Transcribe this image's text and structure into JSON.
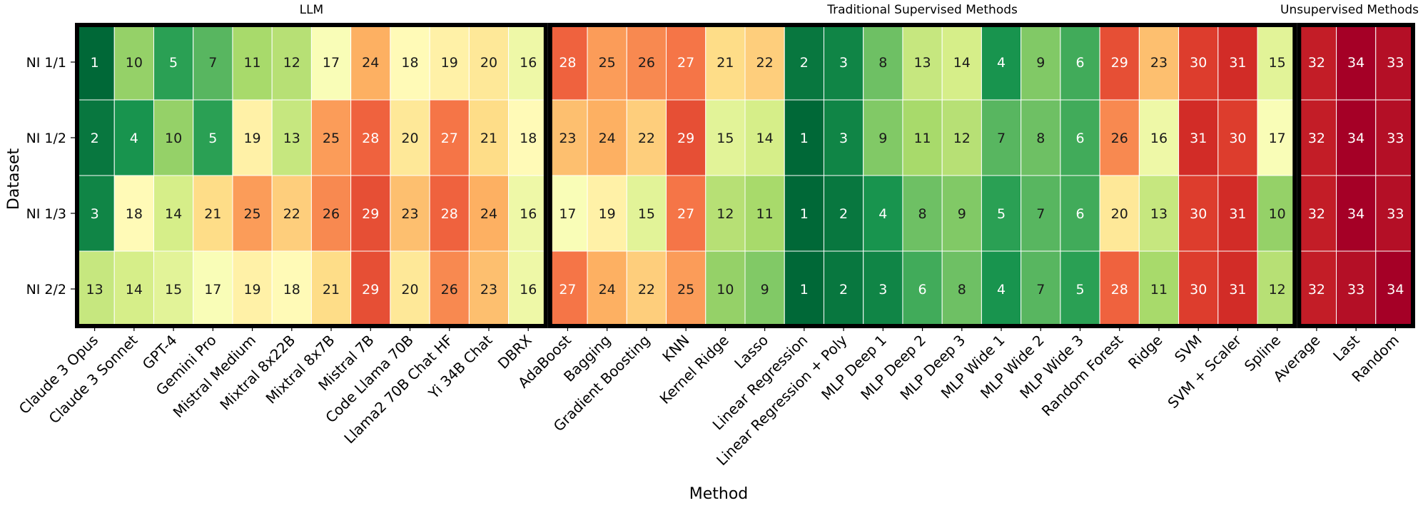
{
  "chart_data": {
    "type": "heatmap",
    "xlabel": "Method",
    "ylabel": "Dataset",
    "rows": [
      "NI 1/1",
      "NI 1/2",
      "NI 1/3",
      "NI 2/2"
    ],
    "columns": [
      "Claude 3 Opus",
      "Claude 3 Sonnet",
      "GPT-4",
      "Gemini Pro",
      "Mistral Medium",
      "Mixtral 8x22B",
      "Mixtral 8x7B",
      "Mistral 7B",
      "Code Llama 70B",
      "Llama2 70B Chat HF",
      "Yi 34B Chat",
      "DBRX",
      "AdaBoost",
      "Bagging",
      "Gradient Boosting",
      "KNN",
      "Kernel Ridge",
      "Lasso",
      "Linear Regression",
      "Linear Regression + Poly",
      "MLP Deep 1",
      "MLP Deep 2",
      "MLP Deep 3",
      "MLP Wide 1",
      "MLP Wide 2",
      "MLP Wide 3",
      "Random Forest",
      "Ridge",
      "SVM",
      "SVM + Scaler",
      "Spline",
      "Average",
      "Last",
      "Random"
    ],
    "values": [
      [
        1,
        10,
        5,
        7,
        11,
        12,
        17,
        24,
        18,
        19,
        20,
        16,
        28,
        25,
        26,
        27,
        21,
        22,
        2,
        3,
        8,
        13,
        14,
        4,
        9,
        6,
        29,
        23,
        30,
        31,
        15,
        32,
        34,
        33
      ],
      [
        2,
        4,
        10,
        5,
        19,
        13,
        25,
        28,
        20,
        27,
        21,
        18,
        23,
        24,
        22,
        29,
        15,
        14,
        1,
        3,
        9,
        11,
        12,
        7,
        8,
        6,
        26,
        16,
        31,
        30,
        17,
        32,
        34,
        33
      ],
      [
        3,
        18,
        14,
        21,
        25,
        22,
        26,
        29,
        23,
        28,
        24,
        16,
        17,
        19,
        15,
        27,
        12,
        11,
        1,
        2,
        4,
        8,
        9,
        5,
        7,
        6,
        20,
        13,
        30,
        31,
        10,
        32,
        34,
        33
      ],
      [
        13,
        14,
        15,
        17,
        19,
        18,
        21,
        29,
        20,
        26,
        23,
        16,
        27,
        24,
        22,
        25,
        10,
        9,
        1,
        2,
        3,
        6,
        8,
        4,
        7,
        5,
        28,
        11,
        30,
        31,
        12,
        32,
        33,
        34
      ]
    ],
    "groups": [
      {
        "label": "LLM",
        "start": 0,
        "end": 11
      },
      {
        "label": "Traditional Supervised Methods",
        "start": 12,
        "end": 30
      },
      {
        "label": "Unsupervised Methods",
        "start": 31,
        "end": 33
      }
    ],
    "value_range": [
      1,
      34
    ],
    "colormap": "RdYlGn reversed",
    "grid": false
  }
}
